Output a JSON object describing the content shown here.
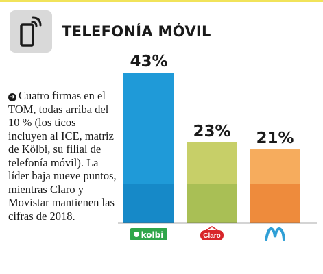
{
  "header": {
    "title": "TELEFONÍA MÓVIL",
    "icon": "phone-signal-icon"
  },
  "description": {
    "text": "Cuatro firmas en el TOM, todas arriba del 10 % (los ticos incluyen al ICE, matriz de Kölbi, su filial de telefonía móvil). La líder baja nueve puntos, mientras Claro y Movistar mantienen las cifras de 2018."
  },
  "chart_data": {
    "type": "bar",
    "categories": [
      "kolbi",
      "Claro",
      "Movistar"
    ],
    "values": [
      43,
      23,
      21
    ],
    "value_labels": [
      "43%",
      "23%",
      "21%"
    ],
    "category_logo_text": [
      "kolbi",
      "Claro",
      ""
    ],
    "unit": "%",
    "grid": false,
    "legend": "none",
    "colors": {
      "kolbi": [
        "#1f9ad8",
        "#1689c8"
      ],
      "Claro": [
        "#c7cf68",
        "#a9bf55"
      ],
      "Movistar": [
        "#f6ac5d",
        "#ee8b3c"
      ],
      "baseline": "#555555"
    }
  }
}
